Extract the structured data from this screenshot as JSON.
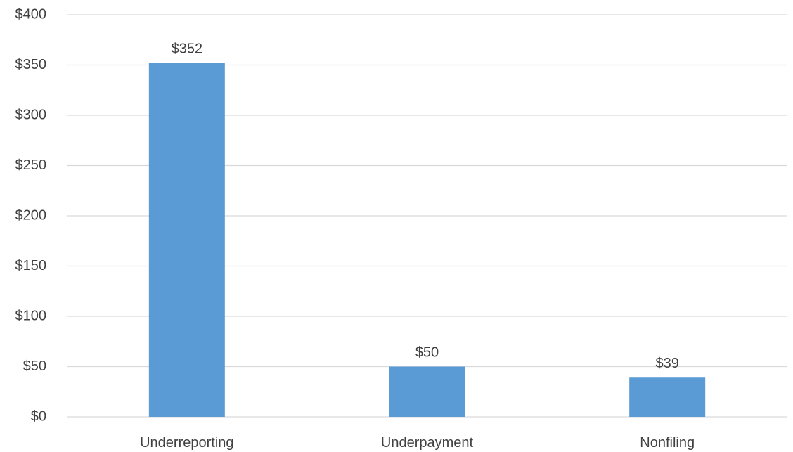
{
  "chart_data": {
    "type": "bar",
    "categories": [
      "Underreporting",
      "Underpayment",
      "Nonfiling"
    ],
    "values": [
      352,
      50,
      39
    ],
    "data_labels": [
      "$352",
      "$50",
      "$39"
    ],
    "y_tick_values": [
      0,
      50,
      100,
      150,
      200,
      250,
      300,
      350,
      400
    ],
    "y_tick_labels": [
      "$0",
      "$50",
      "$100",
      "$150",
      "$200",
      "$250",
      "$300",
      "$350",
      "$400"
    ],
    "ylim": [
      0,
      400
    ],
    "title": "",
    "xlabel": "",
    "ylabel": "",
    "grid": true,
    "legend": "none",
    "colors": {
      "bar": "#5b9bd5",
      "grid": "#d9d9d9",
      "text": "#404040"
    }
  }
}
